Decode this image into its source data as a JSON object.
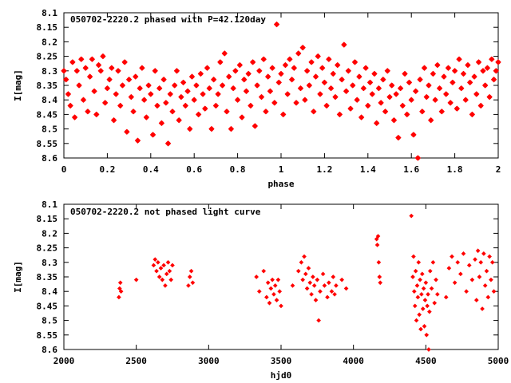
{
  "colors": {
    "points": "#ff0000",
    "axes": "#000000",
    "background": "#ffffff"
  },
  "chart_data": [
    {
      "type": "scatter",
      "title": "050702-2220.2 phased with P=42.120day",
      "xlabel": "phase",
      "ylabel": "I[mag]",
      "xlim": [
        0,
        2
      ],
      "ylim": [
        8.1,
        8.6
      ],
      "y_inverted": true,
      "grid": false,
      "xticks": [
        "0",
        "0.2",
        "0.4",
        "0.6",
        "0.8",
        "1",
        "1.2",
        "1.4",
        "1.6",
        "1.8",
        "2"
      ],
      "yticks": [
        "8.1",
        "8.15",
        "8.2",
        "8.25",
        "8.3",
        "8.35",
        "8.4",
        "8.45",
        "8.5",
        "8.55",
        "8.6"
      ],
      "marker": "star",
      "points": [
        [
          0.0,
          8.3
        ],
        [
          0.01,
          8.33
        ],
        [
          0.02,
          8.38
        ],
        [
          0.03,
          8.42
        ],
        [
          0.04,
          8.27
        ],
        [
          0.05,
          8.46
        ],
        [
          0.06,
          8.3
        ],
        [
          0.07,
          8.35
        ],
        [
          0.08,
          8.26
        ],
        [
          0.09,
          8.4
        ],
        [
          0.1,
          8.29
        ],
        [
          0.11,
          8.44
        ],
        [
          0.12,
          8.32
        ],
        [
          0.13,
          8.26
        ],
        [
          0.14,
          8.37
        ],
        [
          0.15,
          8.45
        ],
        [
          0.16,
          8.28
        ],
        [
          0.17,
          8.3
        ],
        [
          0.18,
          8.25
        ],
        [
          0.19,
          8.41
        ],
        [
          0.2,
          8.36
        ],
        [
          0.21,
          8.33
        ],
        [
          0.22,
          8.29
        ],
        [
          0.23,
          8.47
        ],
        [
          0.24,
          8.38
        ],
        [
          0.25,
          8.3
        ],
        [
          0.26,
          8.42
        ],
        [
          0.27,
          8.35
        ],
        [
          0.28,
          8.27
        ],
        [
          0.29,
          8.51
        ],
        [
          0.3,
          8.33
        ],
        [
          0.31,
          8.39
        ],
        [
          0.32,
          8.44
        ],
        [
          0.33,
          8.32
        ],
        [
          0.34,
          8.54
        ],
        [
          0.35,
          8.36
        ],
        [
          0.36,
          8.29
        ],
        [
          0.37,
          8.4
        ],
        [
          0.38,
          8.46
        ],
        [
          0.39,
          8.35
        ],
        [
          0.4,
          8.38
        ],
        [
          0.41,
          8.52
        ],
        [
          0.42,
          8.3
        ],
        [
          0.43,
          8.42
        ],
        [
          0.44,
          8.36
        ],
        [
          0.45,
          8.48
        ],
        [
          0.46,
          8.33
        ],
        [
          0.47,
          8.41
        ],
        [
          0.48,
          8.55
        ],
        [
          0.49,
          8.38
        ],
        [
          0.5,
          8.44
        ],
        [
          0.51,
          8.35
        ],
        [
          0.52,
          8.3
        ],
        [
          0.53,
          8.47
        ],
        [
          0.54,
          8.39
        ],
        [
          0.55,
          8.34
        ],
        [
          0.56,
          8.42
        ],
        [
          0.57,
          8.37
        ],
        [
          0.58,
          8.5
        ],
        [
          0.59,
          8.32
        ],
        [
          0.6,
          8.4
        ],
        [
          0.61,
          8.35
        ],
        [
          0.62,
          8.45
        ],
        [
          0.63,
          8.31
        ],
        [
          0.64,
          8.38
        ],
        [
          0.65,
          8.43
        ],
        [
          0.66,
          8.29
        ],
        [
          0.67,
          8.36
        ],
        [
          0.68,
          8.5
        ],
        [
          0.69,
          8.33
        ],
        [
          0.7,
          8.42
        ],
        [
          0.71,
          8.38
        ],
        [
          0.72,
          8.27
        ],
        [
          0.73,
          8.35
        ],
        [
          0.74,
          8.24
        ],
        [
          0.75,
          8.44
        ],
        [
          0.76,
          8.32
        ],
        [
          0.77,
          8.5
        ],
        [
          0.78,
          8.36
        ],
        [
          0.79,
          8.3
        ],
        [
          0.8,
          8.4
        ],
        [
          0.81,
          8.28
        ],
        [
          0.82,
          8.46
        ],
        [
          0.83,
          8.33
        ],
        [
          0.84,
          8.37
        ],
        [
          0.85,
          8.31
        ],
        [
          0.86,
          8.42
        ],
        [
          0.87,
          8.27
        ],
        [
          0.88,
          8.49
        ],
        [
          0.89,
          8.35
        ],
        [
          0.9,
          8.3
        ],
        [
          0.91,
          8.39
        ],
        [
          0.92,
          8.26
        ],
        [
          0.93,
          8.44
        ],
        [
          0.94,
          8.32
        ],
        [
          0.95,
          8.37
        ],
        [
          0.96,
          8.29
        ],
        [
          0.97,
          8.41
        ],
        [
          0.98,
          8.14
        ],
        [
          0.99,
          8.34
        ],
        [
          1.0,
          8.31
        ],
        [
          1.01,
          8.45
        ],
        [
          1.02,
          8.28
        ],
        [
          1.03,
          8.38
        ],
        [
          1.04,
          8.26
        ],
        [
          1.05,
          8.33
        ],
        [
          1.06,
          8.29
        ],
        [
          1.07,
          8.41
        ],
        [
          1.08,
          8.24
        ],
        [
          1.09,
          8.36
        ],
        [
          1.1,
          8.22
        ],
        [
          1.11,
          8.4
        ],
        [
          1.12,
          8.3
        ],
        [
          1.13,
          8.35
        ],
        [
          1.14,
          8.27
        ],
        [
          1.15,
          8.44
        ],
        [
          1.16,
          8.32
        ],
        [
          1.17,
          8.25
        ],
        [
          1.18,
          8.38
        ],
        [
          1.19,
          8.29
        ],
        [
          1.2,
          8.34
        ],
        [
          1.21,
          8.42
        ],
        [
          1.22,
          8.26
        ],
        [
          1.23,
          8.36
        ],
        [
          1.24,
          8.31
        ],
        [
          1.25,
          8.39
        ],
        [
          1.26,
          8.28
        ],
        [
          1.27,
          8.45
        ],
        [
          1.28,
          8.33
        ],
        [
          1.29,
          8.21
        ],
        [
          1.3,
          8.37
        ],
        [
          1.31,
          8.3
        ],
        [
          1.32,
          8.43
        ],
        [
          1.33,
          8.35
        ],
        [
          1.34,
          8.27
        ],
        [
          1.35,
          8.4
        ],
        [
          1.36,
          8.32
        ],
        [
          1.37,
          8.46
        ],
        [
          1.38,
          8.36
        ],
        [
          1.39,
          8.29
        ],
        [
          1.4,
          8.42
        ],
        [
          1.41,
          8.34
        ],
        [
          1.42,
          8.38
        ],
        [
          1.43,
          8.31
        ],
        [
          1.44,
          8.48
        ],
        [
          1.45,
          8.36
        ],
        [
          1.46,
          8.41
        ],
        [
          1.47,
          8.33
        ],
        [
          1.48,
          8.44
        ],
        [
          1.49,
          8.3
        ],
        [
          1.5,
          8.39
        ],
        [
          1.51,
          8.35
        ],
        [
          1.52,
          8.47
        ],
        [
          1.53,
          8.38
        ],
        [
          1.54,
          8.53
        ],
        [
          1.55,
          8.36
        ],
        [
          1.56,
          8.42
        ],
        [
          1.57,
          8.31
        ],
        [
          1.58,
          8.45
        ],
        [
          1.59,
          8.34
        ],
        [
          1.6,
          8.4
        ],
        [
          1.61,
          8.52
        ],
        [
          1.62,
          8.37
        ],
        [
          1.63,
          8.6
        ],
        [
          1.64,
          8.33
        ],
        [
          1.65,
          8.44
        ],
        [
          1.66,
          8.29
        ],
        [
          1.67,
          8.39
        ],
        [
          1.68,
          8.35
        ],
        [
          1.69,
          8.47
        ],
        [
          1.7,
          8.31
        ],
        [
          1.71,
          8.4
        ],
        [
          1.72,
          8.28
        ],
        [
          1.73,
          8.36
        ],
        [
          1.74,
          8.44
        ],
        [
          1.75,
          8.32
        ],
        [
          1.76,
          8.38
        ],
        [
          1.77,
          8.29
        ],
        [
          1.78,
          8.41
        ],
        [
          1.79,
          8.34
        ],
        [
          1.8,
          8.3
        ],
        [
          1.81,
          8.43
        ],
        [
          1.82,
          8.26
        ],
        [
          1.83,
          8.36
        ],
        [
          1.84,
          8.31
        ],
        [
          1.85,
          8.4
        ],
        [
          1.86,
          8.28
        ],
        [
          1.87,
          8.34
        ],
        [
          1.88,
          8.45
        ],
        [
          1.89,
          8.32
        ],
        [
          1.9,
          8.38
        ],
        [
          1.91,
          8.27
        ],
        [
          1.92,
          8.42
        ],
        [
          1.93,
          8.3
        ],
        [
          1.94,
          8.35
        ],
        [
          1.95,
          8.29
        ],
        [
          1.96,
          8.39
        ],
        [
          1.97,
          8.26
        ],
        [
          1.98,
          8.33
        ],
        [
          1.99,
          8.3
        ],
        [
          2.0,
          8.27
        ]
      ]
    },
    {
      "type": "scatter",
      "title": "050702-2220.2 not phased light curve",
      "xlabel": "hjd0",
      "ylabel": "I[mag]",
      "xlim": [
        2000,
        5000
      ],
      "ylim": [
        8.1,
        8.6
      ],
      "y_inverted": true,
      "grid": false,
      "xticks": [
        "2000",
        "2500",
        "3000",
        "3500",
        "4000",
        "4500",
        "5000"
      ],
      "yticks": [
        "8.1",
        "8.15",
        "8.2",
        "8.25",
        "8.3",
        "8.35",
        "8.4",
        "8.45",
        "8.5",
        "8.55",
        "8.6"
      ],
      "marker": "diamond",
      "points": [
        [
          2380,
          8.42
        ],
        [
          2385,
          8.39
        ],
        [
          2390,
          8.37
        ],
        [
          2395,
          8.4
        ],
        [
          2500,
          8.36
        ],
        [
          2620,
          8.31
        ],
        [
          2630,
          8.29
        ],
        [
          2640,
          8.33
        ],
        [
          2650,
          8.3
        ],
        [
          2660,
          8.35
        ],
        [
          2670,
          8.32
        ],
        [
          2680,
          8.36
        ],
        [
          2690,
          8.31
        ],
        [
          2700,
          8.38
        ],
        [
          2710,
          8.34
        ],
        [
          2720,
          8.3
        ],
        [
          2730,
          8.33
        ],
        [
          2740,
          8.36
        ],
        [
          2750,
          8.31
        ],
        [
          2860,
          8.38
        ],
        [
          2870,
          8.35
        ],
        [
          2880,
          8.33
        ],
        [
          2890,
          8.37
        ],
        [
          3330,
          8.35
        ],
        [
          3350,
          8.4
        ],
        [
          3380,
          8.33
        ],
        [
          3400,
          8.42
        ],
        [
          3410,
          8.37
        ],
        [
          3420,
          8.44
        ],
        [
          3430,
          8.39
        ],
        [
          3440,
          8.36
        ],
        [
          3450,
          8.41
        ],
        [
          3460,
          8.38
        ],
        [
          3470,
          8.43
        ],
        [
          3480,
          8.36
        ],
        [
          3490,
          8.4
        ],
        [
          3500,
          8.45
        ],
        [
          3580,
          8.38
        ],
        [
          3620,
          8.33
        ],
        [
          3640,
          8.3
        ],
        [
          3650,
          8.36
        ],
        [
          3660,
          8.28
        ],
        [
          3670,
          8.34
        ],
        [
          3680,
          8.39
        ],
        [
          3690,
          8.32
        ],
        [
          3700,
          8.37
        ],
        [
          3710,
          8.41
        ],
        [
          3720,
          8.35
        ],
        [
          3730,
          8.38
        ],
        [
          3740,
          8.43
        ],
        [
          3750,
          8.36
        ],
        [
          3760,
          8.5
        ],
        [
          3770,
          8.4
        ],
        [
          3790,
          8.34
        ],
        [
          3800,
          8.38
        ],
        [
          3820,
          8.42
        ],
        [
          3830,
          8.37
        ],
        [
          3850,
          8.4
        ],
        [
          3860,
          8.35
        ],
        [
          3870,
          8.41
        ],
        [
          3880,
          8.38
        ],
        [
          3920,
          8.36
        ],
        [
          3950,
          8.39
        ],
        [
          4160,
          8.22
        ],
        [
          4165,
          8.24
        ],
        [
          4170,
          8.21
        ],
        [
          4175,
          8.3
        ],
        [
          4180,
          8.35
        ],
        [
          4185,
          8.37
        ],
        [
          4400,
          8.14
        ],
        [
          4410,
          8.35
        ],
        [
          4415,
          8.28
        ],
        [
          4420,
          8.4
        ],
        [
          4425,
          8.45
        ],
        [
          4430,
          8.33
        ],
        [
          4435,
          8.5
        ],
        [
          4440,
          8.38
        ],
        [
          4445,
          8.42
        ],
        [
          4450,
          8.3
        ],
        [
          4455,
          8.48
        ],
        [
          4460,
          8.36
        ],
        [
          4465,
          8.53
        ],
        [
          4470,
          8.41
        ],
        [
          4475,
          8.34
        ],
        [
          4480,
          8.46
        ],
        [
          4485,
          8.39
        ],
        [
          4490,
          8.52
        ],
        [
          4495,
          8.43
        ],
        [
          4500,
          8.37
        ],
        [
          4505,
          8.55
        ],
        [
          4510,
          8.45
        ],
        [
          4515,
          8.41
        ],
        [
          4520,
          8.6
        ],
        [
          4525,
          8.47
        ],
        [
          4530,
          8.33
        ],
        [
          4540,
          8.39
        ],
        [
          4550,
          8.3
        ],
        [
          4560,
          8.44
        ],
        [
          4570,
          8.36
        ],
        [
          4580,
          8.41
        ],
        [
          4640,
          8.42
        ],
        [
          4660,
          8.32
        ],
        [
          4680,
          8.28
        ],
        [
          4700,
          8.37
        ],
        [
          4720,
          8.3
        ],
        [
          4740,
          8.34
        ],
        [
          4760,
          8.27
        ],
        [
          4780,
          8.4
        ],
        [
          4800,
          8.31
        ],
        [
          4820,
          8.36
        ],
        [
          4840,
          8.29
        ],
        [
          4850,
          8.43
        ],
        [
          4860,
          8.26
        ],
        [
          4870,
          8.35
        ],
        [
          4880,
          8.3
        ],
        [
          4890,
          8.46
        ],
        [
          4900,
          8.27
        ],
        [
          4910,
          8.38
        ],
        [
          4920,
          8.33
        ],
        [
          4930,
          8.42
        ],
        [
          4940,
          8.28
        ],
        [
          4950,
          8.36
        ],
        [
          4960,
          8.3
        ],
        [
          4970,
          8.4
        ]
      ]
    }
  ]
}
